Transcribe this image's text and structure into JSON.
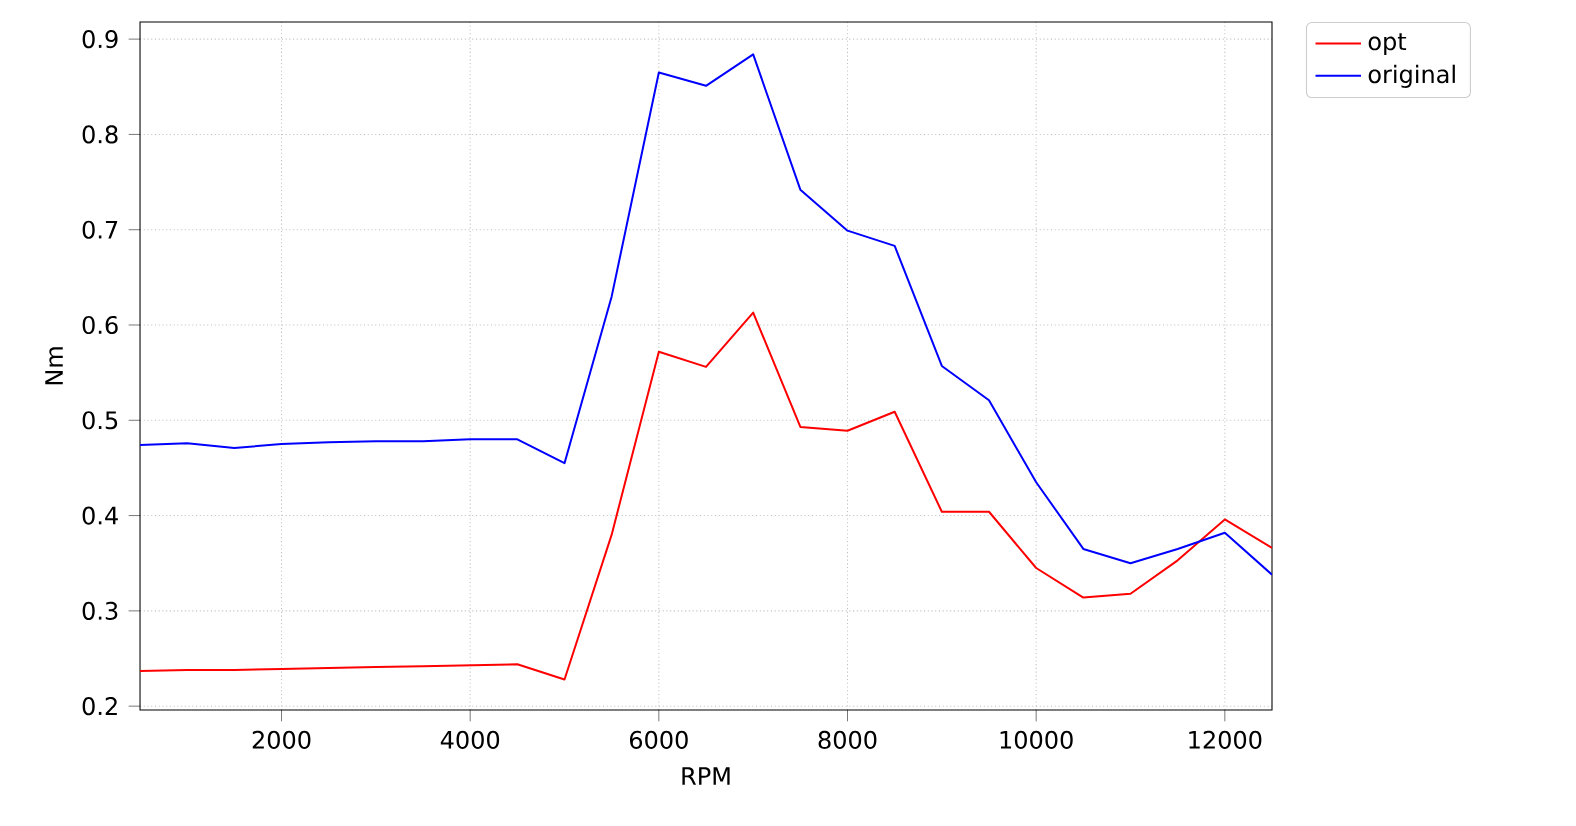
{
  "chart_data": {
    "type": "line",
    "xlabel": "RPM",
    "ylabel": "Nm",
    "x": [
      500,
      1000,
      1500,
      2000,
      2500,
      3000,
      3500,
      4000,
      4500,
      5000,
      5500,
      6000,
      6500,
      7000,
      7500,
      8000,
      8500,
      9000,
      9500,
      10000,
      10500,
      11000,
      11500,
      12000,
      12500
    ],
    "series": [
      {
        "name": "opt",
        "color": "#ff0000",
        "values": [
          0.237,
          0.238,
          0.238,
          0.239,
          0.24,
          0.241,
          0.242,
          0.243,
          0.244,
          0.228,
          0.38,
          0.572,
          0.556,
          0.613,
          0.493,
          0.489,
          0.509,
          0.404,
          0.404,
          0.345,
          0.314,
          0.318,
          0.353,
          0.396,
          0.366
        ]
      },
      {
        "name": "original",
        "color": "#0000ff",
        "values": [
          0.474,
          0.476,
          0.471,
          0.475,
          0.477,
          0.478,
          0.478,
          0.48,
          0.48,
          0.455,
          0.63,
          0.865,
          0.851,
          0.884,
          0.742,
          0.699,
          0.683,
          0.557,
          0.521,
          0.435,
          0.365,
          0.35,
          0.365,
          0.382,
          0.338
        ]
      }
    ],
    "xlim": [
      500,
      12500
    ],
    "ylim": [
      0.196,
      0.918
    ],
    "xticks": [
      2000,
      4000,
      6000,
      8000,
      10000,
      12000
    ],
    "yticks": [
      0.2,
      0.3,
      0.4,
      0.5,
      0.6,
      0.7,
      0.8,
      0.9
    ],
    "grid": true,
    "legend": "top right",
    "line_style": "solid",
    "marker": "none"
  }
}
